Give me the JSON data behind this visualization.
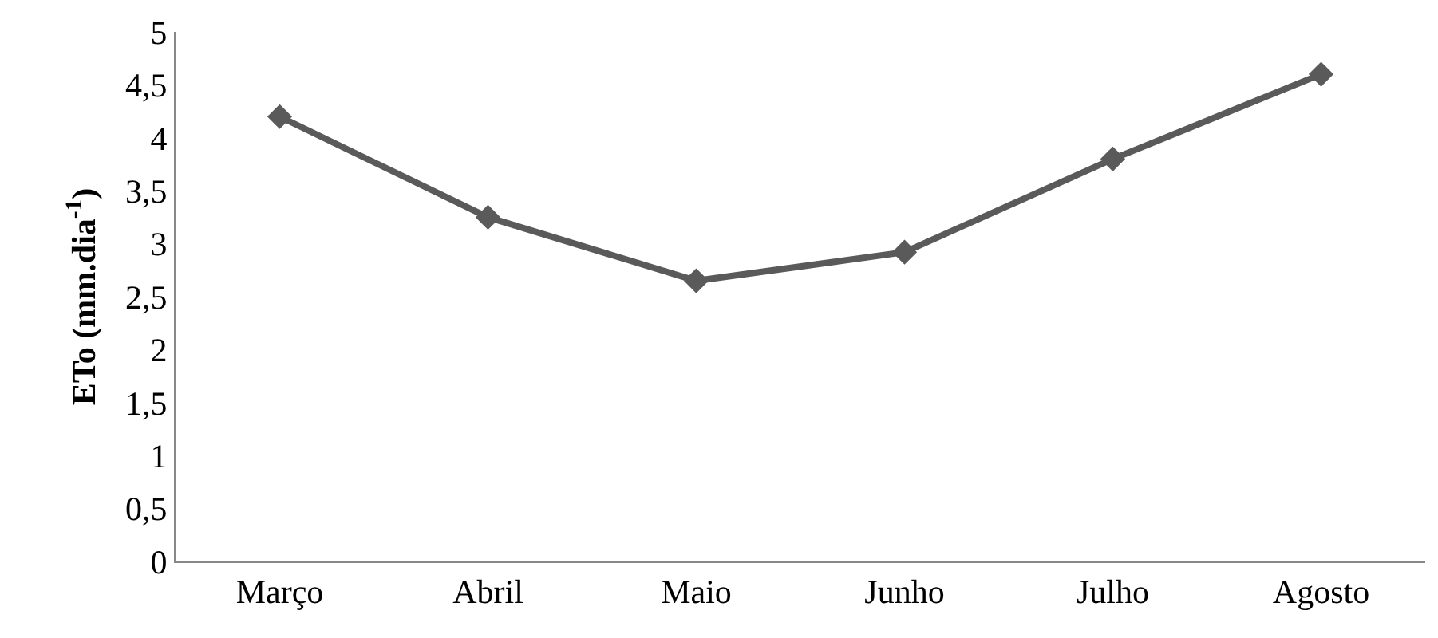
{
  "chart_data": {
    "type": "line",
    "ylabel": "ETo (mm.dia$^{-1}$)",
    "categories": [
      "Março",
      "Abril",
      "Maio",
      "Junho",
      "Julho",
      "Agosto"
    ],
    "series": [
      {
        "color": "#5a5a5a",
        "values": [
          4.2,
          3.25,
          2.65,
          2.92,
          3.8,
          4.6
        ]
      }
    ],
    "ylim": [
      0,
      5
    ],
    "yticks": [
      0,
      {
        "value": 0.5,
        "label": "0,5"
      },
      1,
      {
        "value": 1.5,
        "label": "1,5"
      },
      2,
      {
        "value": 2.5,
        "label": "2,5"
      },
      3,
      {
        "value": 3.5,
        "label": "3,5"
      },
      4,
      {
        "value": 4.5,
        "label": "4,5"
      },
      5
    ],
    "grid": false,
    "marker": "diamond",
    "line_style": "solid"
  }
}
